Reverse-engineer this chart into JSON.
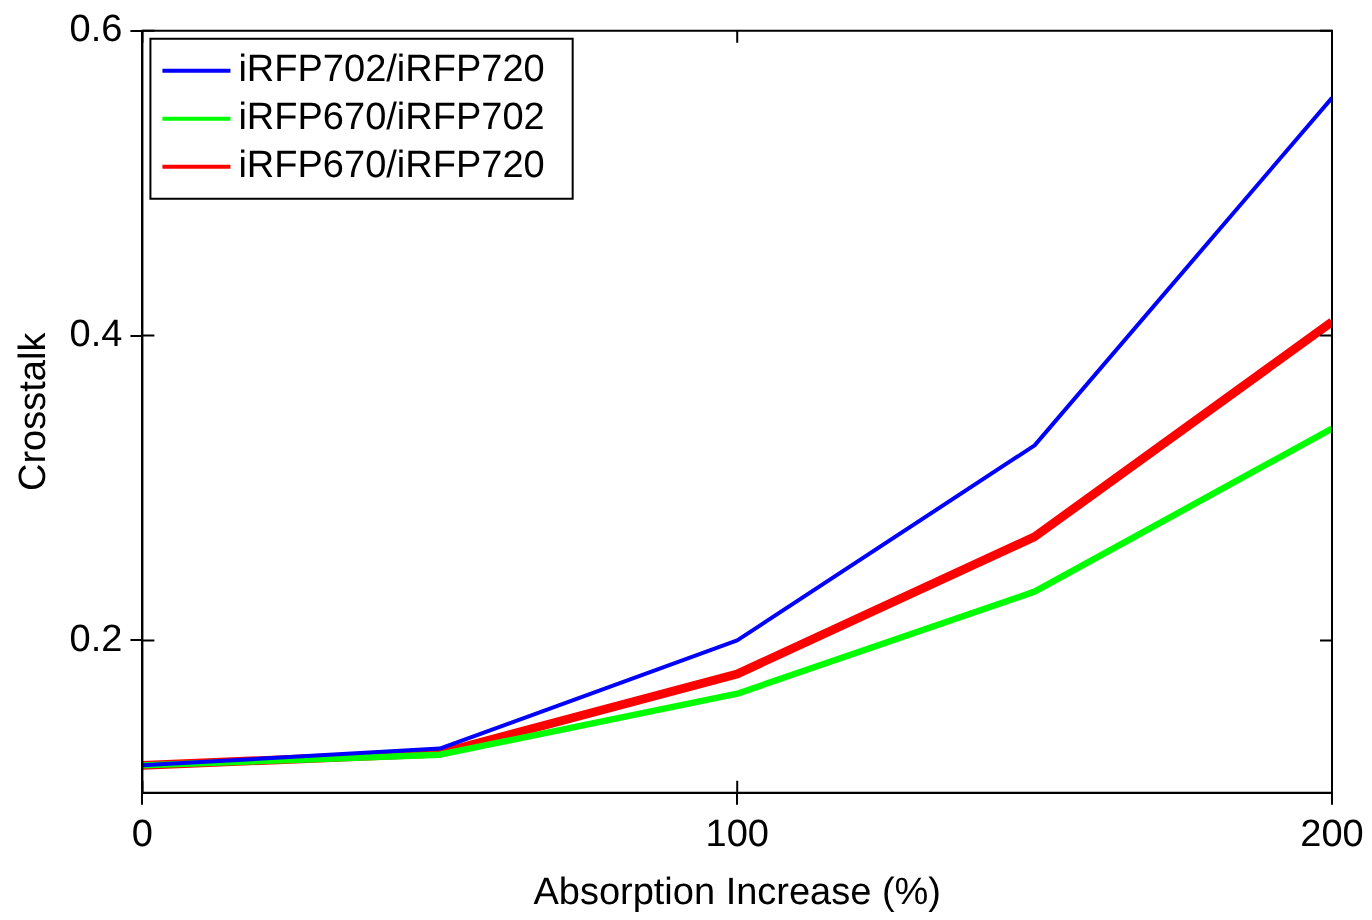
{
  "chart_data": {
    "type": "line",
    "xlabel": "Absorption Increase (%)",
    "ylabel": "Crosstalk",
    "x": [
      0,
      50,
      100,
      150,
      200
    ],
    "series": [
      {
        "name": "iRFP702/iRFP720",
        "color": "#0000ff",
        "values": [
          0.118,
          0.129,
          0.2,
          0.328,
          0.556
        ]
      },
      {
        "name": "iRFP670/iRFP702",
        "color": "#00ff00",
        "values": [
          0.118,
          0.125,
          0.165,
          0.232,
          0.339
        ]
      },
      {
        "name": "iRFP670/iRFP720",
        "color": "#ff0000",
        "values": [
          0.118,
          0.126,
          0.178,
          0.268,
          0.409
        ]
      }
    ],
    "xlim": [
      0,
      200
    ],
    "xticks": [
      0,
      100,
      200
    ],
    "ylim": [
      0.1,
      0.6
    ],
    "yticks": [
      0.2,
      0.4,
      0.6
    ],
    "grid": false,
    "legend": "top left",
    "marker": "none",
    "line_style": "solid"
  }
}
